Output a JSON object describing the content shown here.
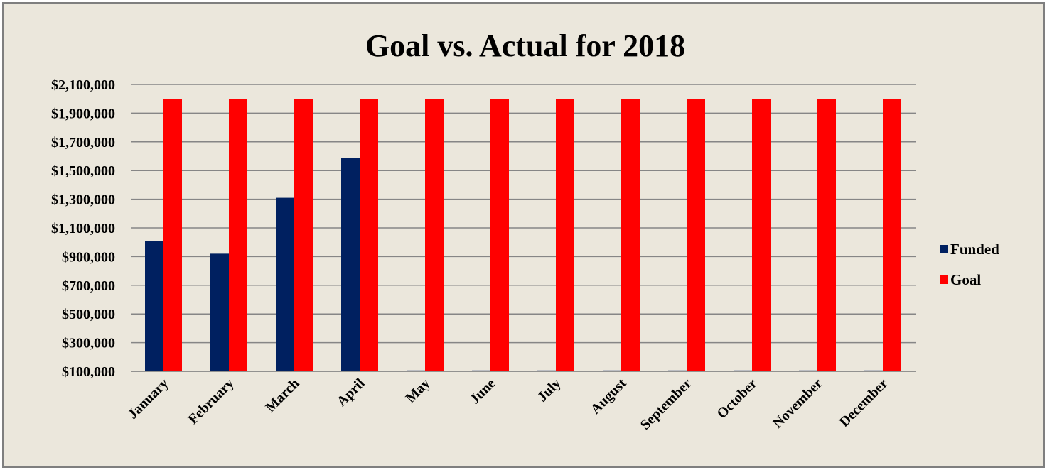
{
  "chart_data": {
    "type": "bar",
    "title": "Goal vs. Actual for 2018",
    "xlabel": "",
    "ylabel": "",
    "categories": [
      "January",
      "February",
      "March",
      "April",
      "May",
      "June",
      "July",
      "August",
      "September",
      "October",
      "November",
      "December"
    ],
    "series": [
      {
        "name": "Funded",
        "color": "#002060",
        "values": [
          1010000,
          920000,
          1310000,
          1590000,
          100000,
          100000,
          100000,
          100000,
          100000,
          100000,
          100000,
          100000
        ]
      },
      {
        "name": "Goal",
        "color": "#ff0000",
        "values": [
          2000000,
          2000000,
          2000000,
          2000000,
          2000000,
          2000000,
          2000000,
          2000000,
          2000000,
          2000000,
          2000000,
          2000000
        ]
      }
    ],
    "ylim": [
      100000,
      2100000
    ],
    "yticks": [
      100000,
      300000,
      500000,
      700000,
      900000,
      1100000,
      1300000,
      1500000,
      1700000,
      1900000,
      2100000
    ],
    "ytick_labels": [
      "$100,000",
      "$300,000",
      "$500,000",
      "$700,000",
      "$900,000",
      "$1,100,000",
      "$1,300,000",
      "$1,500,000",
      "$1,700,000",
      "$1,900,000",
      "$2,100,000"
    ],
    "grid": true,
    "legend_position": "right"
  }
}
